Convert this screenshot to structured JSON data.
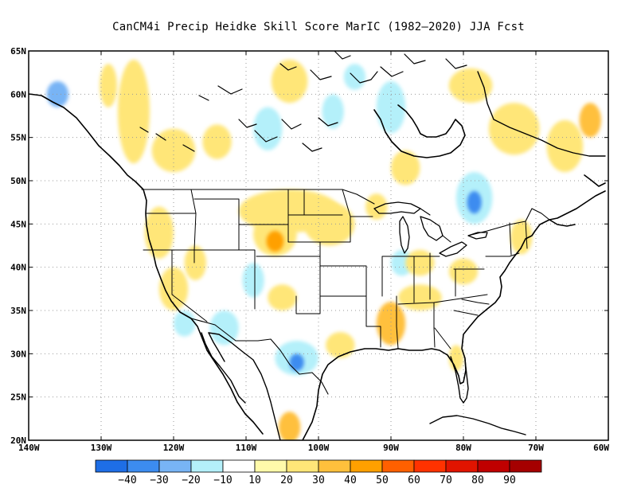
{
  "title": "CanCM4i Precip Heidke Skill Score MarIC (1982–2020) JJA Fcst",
  "map": {
    "lon_range": [
      -140,
      -60
    ],
    "lat_range": [
      20,
      65
    ],
    "lon_ticks": [
      {
        "value": -140,
        "label": "140W"
      },
      {
        "value": -130,
        "label": "130W"
      },
      {
        "value": -120,
        "label": "120W"
      },
      {
        "value": -110,
        "label": "110W"
      },
      {
        "value": -100,
        "label": "100W"
      },
      {
        "value": -90,
        "label": "90W"
      },
      {
        "value": -80,
        "label": "80W"
      },
      {
        "value": -70,
        "label": "70W"
      },
      {
        "value": -60,
        "label": "60W"
      }
    ],
    "lat_ticks": [
      {
        "value": 20,
        "label": "20N"
      },
      {
        "value": 25,
        "label": "25N"
      },
      {
        "value": 30,
        "label": "30N"
      },
      {
        "value": 35,
        "label": "35N"
      },
      {
        "value": 40,
        "label": "40N"
      },
      {
        "value": 45,
        "label": "45N"
      },
      {
        "value": 50,
        "label": "50N"
      },
      {
        "value": 55,
        "label": "55N"
      },
      {
        "value": 60,
        "label": "60N"
      },
      {
        "value": 65,
        "label": "65N"
      }
    ],
    "grid": "dotted"
  },
  "colorbar": {
    "colors": [
      "#1e6ee6",
      "#3c8cf0",
      "#78b4f5",
      "#b4f0fa",
      "#ffffff",
      "#fffaaa",
      "#ffe678",
      "#ffc03c",
      "#ffa000",
      "#ff6000",
      "#ff3200",
      "#e11400",
      "#c00000",
      "#a50000"
    ],
    "labels": [
      "−40",
      "−30",
      "−20",
      "−10",
      "10",
      "20",
      "30",
      "40",
      "50",
      "60",
      "70",
      "80",
      "90"
    ]
  },
  "skill_patches": [
    {
      "lon": -125.5,
      "lat": 58,
      "rlon": 2.2,
      "rlat": 6,
      "level": 20
    },
    {
      "lon": -129,
      "lat": 61,
      "rlon": 1.2,
      "rlat": 2.5,
      "level": 20
    },
    {
      "lon": -136,
      "lat": 60,
      "rlon": 1.5,
      "rlat": 1.5,
      "level": -20
    },
    {
      "lon": -120,
      "lat": 53.5,
      "rlon": 3,
      "rlat": 2.5,
      "level": 20
    },
    {
      "lon": -114,
      "lat": 54.5,
      "rlon": 2,
      "rlat": 2,
      "level": 20
    },
    {
      "lon": -107,
      "lat": 56,
      "rlon": 2,
      "rlat": 2.5,
      "level": -10
    },
    {
      "lon": -104,
      "lat": 61.5,
      "rlon": 2.5,
      "rlat": 2.5,
      "level": 20
    },
    {
      "lon": -98,
      "lat": 58,
      "rlon": 1.5,
      "rlat": 2,
      "level": -10
    },
    {
      "lon": -90,
      "lat": 58.5,
      "rlon": 2,
      "rlat": 3,
      "level": -10
    },
    {
      "lon": -95,
      "lat": 62,
      "rlon": 1.5,
      "rlat": 1.5,
      "level": -10
    },
    {
      "lon": -73,
      "lat": 56,
      "rlon": 3.5,
      "rlat": 3,
      "level": 20
    },
    {
      "lon": -66,
      "lat": 54,
      "rlon": 2.5,
      "rlat": 3,
      "level": 20
    },
    {
      "lon": -79,
      "lat": 61,
      "rlon": 3,
      "rlat": 2,
      "level": 20
    },
    {
      "lon": -62.5,
      "lat": 57,
      "rlon": 1.5,
      "rlat": 2,
      "level": 30
    },
    {
      "lon": -78.5,
      "lat": 48,
      "rlon": 2.5,
      "rlat": 3,
      "level": -10
    },
    {
      "lon": -78.5,
      "lat": 47.5,
      "rlon": 1,
      "rlat": 1.3,
      "level": -30
    },
    {
      "lon": -88,
      "lat": 51.5,
      "rlon": 2,
      "rlat": 2,
      "level": 20
    },
    {
      "lon": -104,
      "lat": 46.5,
      "rlon": 7,
      "rlat": 2.5,
      "level": 20
    },
    {
      "lon": -98.5,
      "lat": 45,
      "rlon": 3.5,
      "rlat": 2.5,
      "level": 20
    },
    {
      "lon": -106,
      "lat": 43.8,
      "rlon": 3,
      "rlat": 2.5,
      "level": 20
    },
    {
      "lon": -106,
      "lat": 43,
      "rlon": 1.2,
      "rlat": 1.2,
      "level": 40
    },
    {
      "lon": -122,
      "lat": 44,
      "rlon": 2,
      "rlat": 3,
      "level": 20
    },
    {
      "lon": -120,
      "lat": 37.5,
      "rlon": 2,
      "rlat": 2.5,
      "level": 20
    },
    {
      "lon": -117,
      "lat": 40.5,
      "rlon": 1.5,
      "rlat": 2,
      "level": 20
    },
    {
      "lon": -113,
      "lat": 33,
      "rlon": 2,
      "rlat": 2,
      "level": -10
    },
    {
      "lon": -118.5,
      "lat": 33.5,
      "rlon": 1.5,
      "rlat": 1.5,
      "level": -10
    },
    {
      "lon": -109,
      "lat": 38.5,
      "rlon": 1.5,
      "rlat": 2,
      "level": -10
    },
    {
      "lon": -105,
      "lat": 36.5,
      "rlon": 2,
      "rlat": 1.5,
      "level": 20
    },
    {
      "lon": -103,
      "lat": 29.5,
      "rlon": 3,
      "rlat": 2,
      "level": -10
    },
    {
      "lon": -103,
      "lat": 29,
      "rlon": 1,
      "rlat": 1,
      "level": -30
    },
    {
      "lon": -97,
      "lat": 31,
      "rlon": 2,
      "rlat": 1.5,
      "level": 20
    },
    {
      "lon": -104,
      "lat": 21.5,
      "rlon": 1.5,
      "rlat": 1.8,
      "level": 30
    },
    {
      "lon": -90,
      "lat": 33.5,
      "rlon": 2,
      "rlat": 2.5,
      "level": 30
    },
    {
      "lon": -86,
      "lat": 36.5,
      "rlon": 3,
      "rlat": 1.5,
      "level": 20
    },
    {
      "lon": -88.5,
      "lat": 40.5,
      "rlon": 1.5,
      "rlat": 1.5,
      "level": -10
    },
    {
      "lon": -86,
      "lat": 40.5,
      "rlon": 2,
      "rlat": 1.5,
      "level": 20
    },
    {
      "lon": -80,
      "lat": 39.5,
      "rlon": 2,
      "rlat": 1.5,
      "level": 20
    },
    {
      "lon": -72,
      "lat": 43.5,
      "rlon": 1.5,
      "rlat": 2,
      "level": 20
    },
    {
      "lon": -81,
      "lat": 29.5,
      "rlon": 1,
      "rlat": 1.5,
      "level": 20
    },
    {
      "lon": -92,
      "lat": 47,
      "rlon": 1.5,
      "rlat": 1.5,
      "level": 20
    }
  ]
}
